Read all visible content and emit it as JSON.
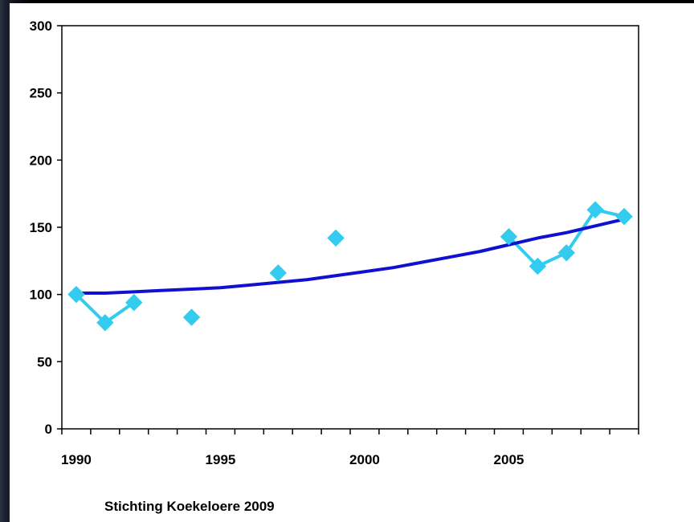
{
  "credit": "Stichting Koekeloere 2009",
  "chart_data": {
    "type": "line",
    "ylim": [
      0,
      300
    ],
    "xlim": [
      1989.5,
      2009.5
    ],
    "y_ticks": [
      0,
      50,
      100,
      150,
      200,
      250,
      300
    ],
    "x_ticks": [
      1990,
      1995,
      2000,
      2005
    ],
    "grid": false,
    "legend": "none",
    "series": [
      {
        "style": "line-with-diamond-markers",
        "color": "#33ccee",
        "points": [
          [
            1990,
            100
          ],
          [
            1991,
            79
          ],
          [
            1992,
            94
          ],
          [
            1994,
            83
          ],
          [
            1997,
            116
          ],
          [
            1999,
            142
          ],
          [
            2005,
            143
          ],
          [
            2006,
            121
          ],
          [
            2007,
            131
          ],
          [
            2008,
            163
          ],
          [
            2009,
            158
          ]
        ],
        "connected_runs": [
          [
            1990,
            1992
          ],
          [
            2005,
            2009
          ]
        ]
      },
      {
        "style": "trend-line",
        "color": "#1010d0",
        "x": [
          1990,
          1991,
          1992,
          1993,
          1994,
          1995,
          1996,
          1997,
          1998,
          1999,
          2000,
          2001,
          2002,
          2003,
          2004,
          2005,
          2006,
          2007,
          2008,
          2009
        ],
        "values": [
          101,
          101,
          102,
          103,
          104,
          105,
          107,
          109,
          111,
          114,
          117,
          120,
          124,
          128,
          132,
          137,
          142,
          146,
          151,
          156
        ]
      }
    ]
  }
}
